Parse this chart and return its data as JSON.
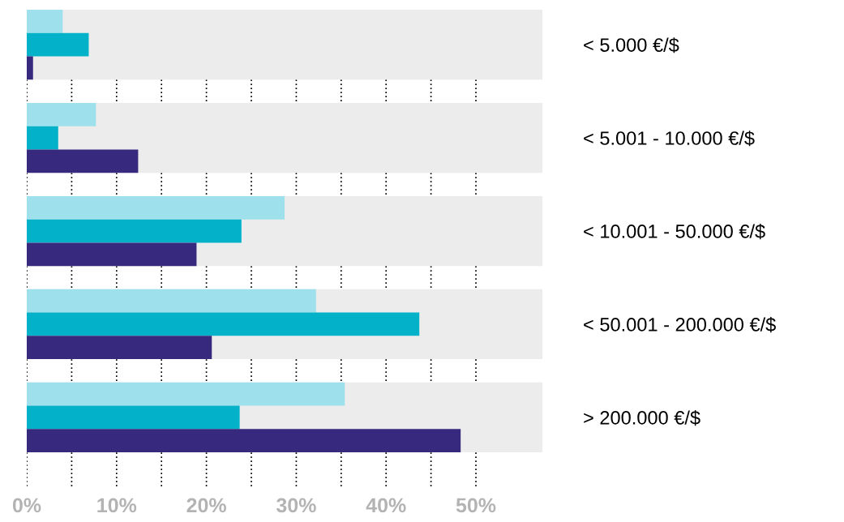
{
  "chart_data": {
    "type": "bar",
    "orientation": "horizontal",
    "categories": [
      "< 5.000 €/$",
      "< 5.001 - 10.000 €/$",
      "< 10.001 - 50.000 €/$",
      "< 50.001 - 200.000 €/$",
      "> 200.000 €/$"
    ],
    "series": [
      {
        "color": "#9ee0eb",
        "values": [
          4.0,
          7.7,
          28.7,
          32.2,
          35.4
        ]
      },
      {
        "color": "#03b2c9",
        "values": [
          6.9,
          3.5,
          23.9,
          43.7,
          23.7
        ]
      },
      {
        "color": "#372a7e",
        "values": [
          0.7,
          12.4,
          18.9,
          20.6,
          48.3
        ]
      }
    ],
    "xlim": [
      0,
      57.4
    ],
    "xticks": [
      {
        "value": 0,
        "label": "0%"
      },
      {
        "value": 5,
        "label": null
      },
      {
        "value": 10,
        "label": "10%"
      },
      {
        "value": 15,
        "label": null
      },
      {
        "value": 20,
        "label": "20%"
      },
      {
        "value": 25,
        "label": null
      },
      {
        "value": 30,
        "label": "30%"
      },
      {
        "value": 35,
        "label": null
      },
      {
        "value": 40,
        "label": "40%"
      },
      {
        "value": 45,
        "label": null
      },
      {
        "value": 50,
        "label": "50%"
      }
    ],
    "bands": [
      {
        "axis": "y",
        "from": "< 5.000 €/$",
        "to": "< 5.000 €/$",
        "color": "#ececec"
      },
      {
        "axis": "y",
        "from": "< 5.001 - 10.000 €/$",
        "to": "< 5.001 - 10.000 €/$",
        "color": "#ececec"
      },
      {
        "axis": "y",
        "from": "< 10.001 - 50.000 €/$",
        "to": "< 10.001 - 50.000 €/$",
        "color": "#ececec"
      },
      {
        "axis": "y",
        "from": "< 50.001 - 200.000 €/$",
        "to": "< 50.001 - 200.000 €/$",
        "color": "#ececec"
      },
      {
        "axis": "y",
        "from": "> 200.000 €/$",
        "to": "> 200.000 €/$",
        "color": "#ececec"
      }
    ],
    "grid": "x"
  }
}
